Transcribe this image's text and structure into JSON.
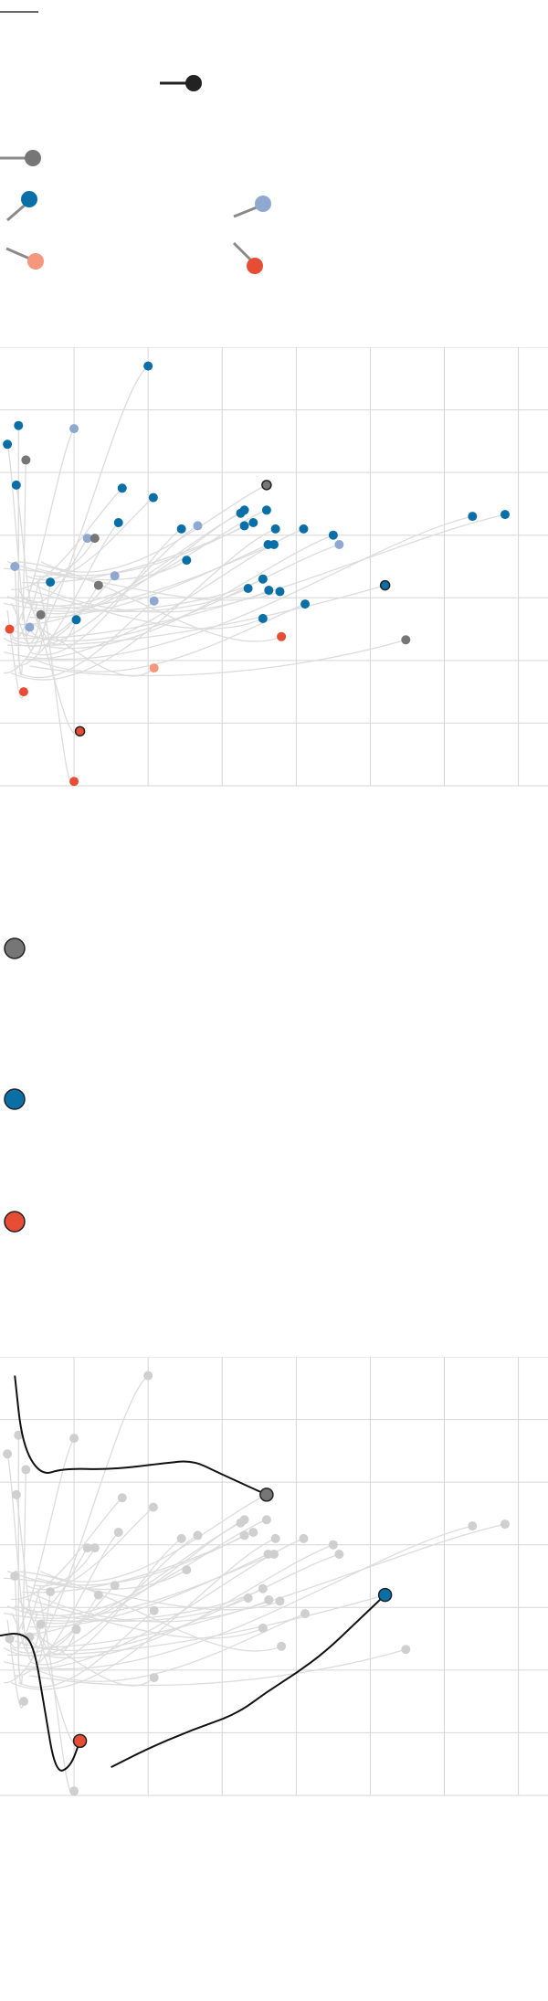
{
  "colors": {
    "gray_dark": "#767676",
    "blue_dark": "#0a6fa6",
    "blue_light": "#8ea8d2",
    "salmon": "#f4977c",
    "red": "#e74c35",
    "black": "#222222",
    "trail": "#dcdcdc",
    "grid": "#d6d6d6",
    "highlight_line": "#111111"
  },
  "legend": {
    "top_rule": true,
    "items": [
      {
        "name": "legend-black-pin",
        "color": "#222222",
        "kind": "pin-horizontal"
      },
      {
        "name": "legend-gray-pin",
        "color": "#767676",
        "kind": "pin-horizontal"
      },
      {
        "name": "legend-blue-pin",
        "color": "#0a6fa6",
        "kind": "pin-rising"
      },
      {
        "name": "legend-lightblue-pin",
        "color": "#8ea8d2",
        "kind": "pin-rising"
      },
      {
        "name": "legend-salmon-pin",
        "color": "#f4977c",
        "kind": "pin-falling"
      },
      {
        "name": "legend-red-pin",
        "color": "#e74c35",
        "kind": "pin-falling"
      }
    ]
  },
  "dot_legend": [
    {
      "name": "gray-dot-key",
      "color": "#767676"
    },
    {
      "name": "blue-dot-key",
      "color": "#0a6fa6"
    },
    {
      "name": "red-dot-key",
      "color": "#e74c35"
    }
  ],
  "chart_data": [
    {
      "type": "scatter",
      "title": "",
      "xlabel": "",
      "ylabel": "",
      "grid": true,
      "xlim": [
        0,
        7.4
      ],
      "ylim": [
        0,
        7
      ],
      "x_gridlines": [
        1,
        2,
        3,
        4,
        5,
        6,
        7
      ],
      "y_gridlines": [
        1,
        2,
        3,
        4,
        5,
        6
      ],
      "points": [
        {
          "x": 2.0,
          "y": 6.7,
          "group": "blue"
        },
        {
          "x": 0.25,
          "y": 5.75,
          "group": "blue"
        },
        {
          "x": 0.1,
          "y": 5.45,
          "group": "blue"
        },
        {
          "x": 1.0,
          "y": 5.7,
          "group": "lightblue"
        },
        {
          "x": 0.35,
          "y": 5.2,
          "group": "gray"
        },
        {
          "x": 0.22,
          "y": 4.8,
          "group": "blue"
        },
        {
          "x": 1.65,
          "y": 4.75,
          "group": "blue"
        },
        {
          "x": 2.07,
          "y": 4.6,
          "group": "blue"
        },
        {
          "x": 3.6,
          "y": 4.8,
          "group": "gray",
          "outlined": true
        },
        {
          "x": 1.6,
          "y": 4.2,
          "group": "blue"
        },
        {
          "x": 2.45,
          "y": 4.1,
          "group": "blue"
        },
        {
          "x": 2.67,
          "y": 4.15,
          "group": "lightblue"
        },
        {
          "x": 3.25,
          "y": 4.35,
          "group": "blue"
        },
        {
          "x": 3.3,
          "y": 4.4,
          "group": "blue"
        },
        {
          "x": 3.6,
          "y": 4.4,
          "group": "blue"
        },
        {
          "x": 3.42,
          "y": 4.2,
          "group": "blue"
        },
        {
          "x": 3.3,
          "y": 4.15,
          "group": "blue"
        },
        {
          "x": 3.72,
          "y": 4.1,
          "group": "blue"
        },
        {
          "x": 4.1,
          "y": 4.1,
          "group": "blue"
        },
        {
          "x": 4.5,
          "y": 4.0,
          "group": "blue"
        },
        {
          "x": 4.58,
          "y": 3.85,
          "group": "lightblue"
        },
        {
          "x": 3.62,
          "y": 3.85,
          "group": "blue"
        },
        {
          "x": 3.7,
          "y": 3.85,
          "group": "blue"
        },
        {
          "x": 1.18,
          "y": 3.95,
          "group": "lightblue"
        },
        {
          "x": 1.28,
          "y": 3.95,
          "group": "gray"
        },
        {
          "x": 2.52,
          "y": 3.6,
          "group": "blue"
        },
        {
          "x": 0.2,
          "y": 3.5,
          "group": "lightblue"
        },
        {
          "x": 0.68,
          "y": 3.25,
          "group": "blue"
        },
        {
          "x": 1.55,
          "y": 3.35,
          "group": "lightblue"
        },
        {
          "x": 1.33,
          "y": 3.2,
          "group": "gray"
        },
        {
          "x": 3.55,
          "y": 3.3,
          "group": "blue"
        },
        {
          "x": 3.35,
          "y": 3.15,
          "group": "blue"
        },
        {
          "x": 3.63,
          "y": 3.12,
          "group": "blue"
        },
        {
          "x": 3.78,
          "y": 3.1,
          "group": "blue"
        },
        {
          "x": 2.08,
          "y": 2.95,
          "group": "lightblue"
        },
        {
          "x": 4.12,
          "y": 2.9,
          "group": "blue"
        },
        {
          "x": 5.2,
          "y": 3.2,
          "group": "blue",
          "outlined": true
        },
        {
          "x": 0.55,
          "y": 2.73,
          "group": "gray"
        },
        {
          "x": 1.03,
          "y": 2.65,
          "group": "blue"
        },
        {
          "x": 0.4,
          "y": 2.53,
          "group": "lightblue"
        },
        {
          "x": 3.55,
          "y": 2.67,
          "group": "blue"
        },
        {
          "x": 0.13,
          "y": 2.5,
          "group": "red"
        },
        {
          "x": 3.8,
          "y": 2.38,
          "group": "red"
        },
        {
          "x": 5.48,
          "y": 2.33,
          "group": "gray"
        },
        {
          "x": 6.38,
          "y": 4.3,
          "group": "blue"
        },
        {
          "x": 6.82,
          "y": 4.33,
          "group": "blue"
        },
        {
          "x": 2.08,
          "y": 1.88,
          "group": "salmon"
        },
        {
          "x": 0.32,
          "y": 1.5,
          "group": "red"
        },
        {
          "x": 1.08,
          "y": 0.87,
          "group": "red",
          "outlined": true
        },
        {
          "x": 1.0,
          "y": 0.07,
          "group": "red"
        }
      ]
    },
    {
      "type": "line",
      "title": "",
      "xlabel": "",
      "ylabel": "",
      "grid": true,
      "xlim": [
        0,
        7.4
      ],
      "ylim": [
        0,
        7
      ],
      "highlighted_series": [
        {
          "name": "",
          "group": "gray",
          "end": [
            3.6,
            4.8
          ],
          "points": [
            [
              0.2,
              6.7
            ],
            [
              0.3,
              5.6
            ],
            [
              0.55,
              5.1
            ],
            [
              0.85,
              5.22
            ],
            [
              1.5,
              5.2
            ],
            [
              2.2,
              5.3
            ],
            [
              2.6,
              5.35
            ],
            [
              2.95,
              5.15
            ],
            [
              3.6,
              4.8
            ]
          ]
        },
        {
          "name": "",
          "group": "blue",
          "end": [
            5.2,
            3.2
          ],
          "points": [
            [
              1.5,
              0.45
            ],
            [
              2.0,
              0.75
            ],
            [
              2.6,
              1.05
            ],
            [
              3.2,
              1.3
            ],
            [
              3.6,
              1.65
            ],
            [
              4.0,
              1.95
            ],
            [
              4.4,
              2.3
            ],
            [
              4.8,
              2.75
            ],
            [
              5.2,
              3.2
            ]
          ]
        },
        {
          "name": "",
          "group": "red",
          "end": [
            1.08,
            0.87
          ],
          "points": [
            [
              0.0,
              2.55
            ],
            [
              0.25,
              2.6
            ],
            [
              0.45,
              2.45
            ],
            [
              0.6,
              1.4
            ],
            [
              0.75,
              0.35
            ],
            [
              0.95,
              0.45
            ],
            [
              1.08,
              0.87
            ]
          ]
        }
      ]
    }
  ]
}
